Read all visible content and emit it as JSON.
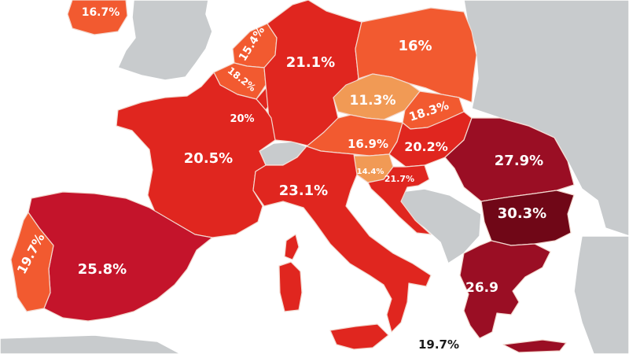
{
  "map": {
    "colors": {
      "sea": "#ffffff",
      "non_eu": "#c8cbcd",
      "light": "#f19a55",
      "orange": "#f25a30",
      "red": "#e0261f",
      "crimson": "#c4142b",
      "dark": "#9a0e24",
      "darkest": "#700717"
    },
    "countries": [
      {
        "name": "Ireland",
        "value": "16.7%"
      },
      {
        "name": "Netherlands",
        "value": "15.4%"
      },
      {
        "name": "Belgium",
        "value": "18.2%"
      },
      {
        "name": "Luxembourg",
        "value": "20%"
      },
      {
        "name": "Germany",
        "value": "21.1%"
      },
      {
        "name": "Poland",
        "value": "16%"
      },
      {
        "name": "Czechia",
        "value": "11.3%"
      },
      {
        "name": "Slovakia",
        "value": "18.3%"
      },
      {
        "name": "Austria",
        "value": "16.9%"
      },
      {
        "name": "Hungary",
        "value": "20.2%"
      },
      {
        "name": "Slovenia",
        "value": "14.4%"
      },
      {
        "name": "Croatia",
        "value": "21.7%"
      },
      {
        "name": "France",
        "value": "20.5%"
      },
      {
        "name": "Italy",
        "value": "23.1%"
      },
      {
        "name": "Romania",
        "value": "27.9%"
      },
      {
        "name": "Bulgaria",
        "value": "30.3%"
      },
      {
        "name": "Portugal",
        "value": "19.7%"
      },
      {
        "name": "Spain",
        "value": "25.8%"
      },
      {
        "name": "Greece",
        "value": "26.9"
      },
      {
        "name": "Malta",
        "value": "19.7%"
      }
    ]
  }
}
